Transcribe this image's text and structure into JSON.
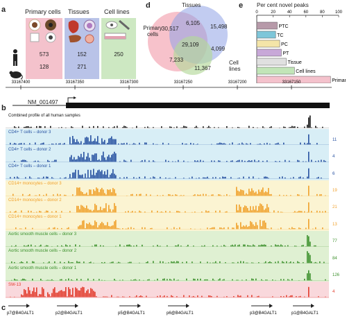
{
  "panels": {
    "a": "a",
    "b": "b",
    "c": "c",
    "d": "d",
    "e": "e"
  },
  "panel_a": {
    "columns": [
      {
        "label": "Primary cells",
        "human": "573",
        "mouse": "128",
        "color": "#f4c2cc"
      },
      {
        "label": "Tissues",
        "human": "152",
        "mouse": "271",
        "color": "#b9c3e8"
      },
      {
        "label": "Cell lines",
        "human": "250",
        "mouse": "",
        "color": "#cde8c2"
      }
    ]
  },
  "panel_d": {
    "sets": [
      {
        "label": "Primary cells",
        "color": "#f29aa8"
      },
      {
        "label": "Tissues",
        "color": "#8fa3e6"
      },
      {
        "label": "Cell lines",
        "color": "#b4d99a"
      }
    ],
    "regions": {
      "primary_only": "30,517",
      "primary_tissues": "6,105",
      "tissues_only": "15,498",
      "all_three": "29,109",
      "tissues_lines": "4,099",
      "primary_lines": "7,233",
      "lines_only": "11,367"
    }
  },
  "chart_data": {
    "type": "bar",
    "title": "Per cent novel peaks",
    "categories": [
      "PTC",
      "TC",
      "PC",
      "PT",
      "Tissue",
      "Cell lines",
      "Primary"
    ],
    "values": [
      25,
      23,
      28,
      30,
      36,
      46,
      90
    ],
    "colors": [
      "#b79aa9",
      "#7ec6d9",
      "#f4e5a8",
      "#c8a8d8",
      "#e0e0e0",
      "#c2e5b8",
      "#f4c2cc"
    ],
    "xlim": [
      0,
      100
    ],
    "ticks": [
      "0",
      "20",
      "40",
      "60",
      "80",
      "100"
    ]
  },
  "panel_b": {
    "coords": [
      "33167400",
      "33167350",
      "33167300",
      "33167250",
      "33167200",
      "33167150"
    ],
    "gene": "NM_001497",
    "tracks": [
      {
        "label": "Combined profile of all human samples",
        "value": "",
        "color": "#111111",
        "bg": "#ffffff"
      },
      {
        "label": "CD4+ T cells – donor 3",
        "value": "11",
        "color": "#2650a0",
        "bg": "#d8eef6"
      },
      {
        "label": "CD4+ T cells – donor 2",
        "value": "4",
        "color": "#2650a0",
        "bg": "#d8eef6"
      },
      {
        "label": "CD4+ T cells – donor 1",
        "value": "6",
        "color": "#2650a0",
        "bg": "#d8eef6"
      },
      {
        "label": "CD14+ monocytes – donor 3",
        "value": "19",
        "color": "#f0a02a",
        "bg": "#fbf4d2"
      },
      {
        "label": "CD14+ monocytes – donor 2",
        "value": "21",
        "color": "#f0a02a",
        "bg": "#fbf4d2"
      },
      {
        "label": "CD14+ monocytes – donor 1",
        "value": "13",
        "color": "#f0a02a",
        "bg": "#fbf4d2"
      },
      {
        "label": "Aortic smooth muscle cells – donor 3",
        "value": "77",
        "color": "#3a8f2a",
        "bg": "#dff0d2"
      },
      {
        "label": "Aortic smooth muscle cells – donor 2",
        "value": "84",
        "color": "#3a8f2a",
        "bg": "#dff0d2"
      },
      {
        "label": "Aortic smooth muscle cells – donor 1",
        "value": "126",
        "color": "#3a8f2a",
        "bg": "#dff0d2"
      },
      {
        "label": "SW-13",
        "value": "4",
        "color": "#e23a2a",
        "bg": "#f9d8dc"
      }
    ]
  },
  "panel_c": {
    "promoters": [
      "p7@B4GALT1",
      "p2@B4GALT1",
      "p5@B4GALT1",
      "p6@B4GALT1",
      "p3@B4GALT1",
      "p1@B4GALT1"
    ]
  }
}
